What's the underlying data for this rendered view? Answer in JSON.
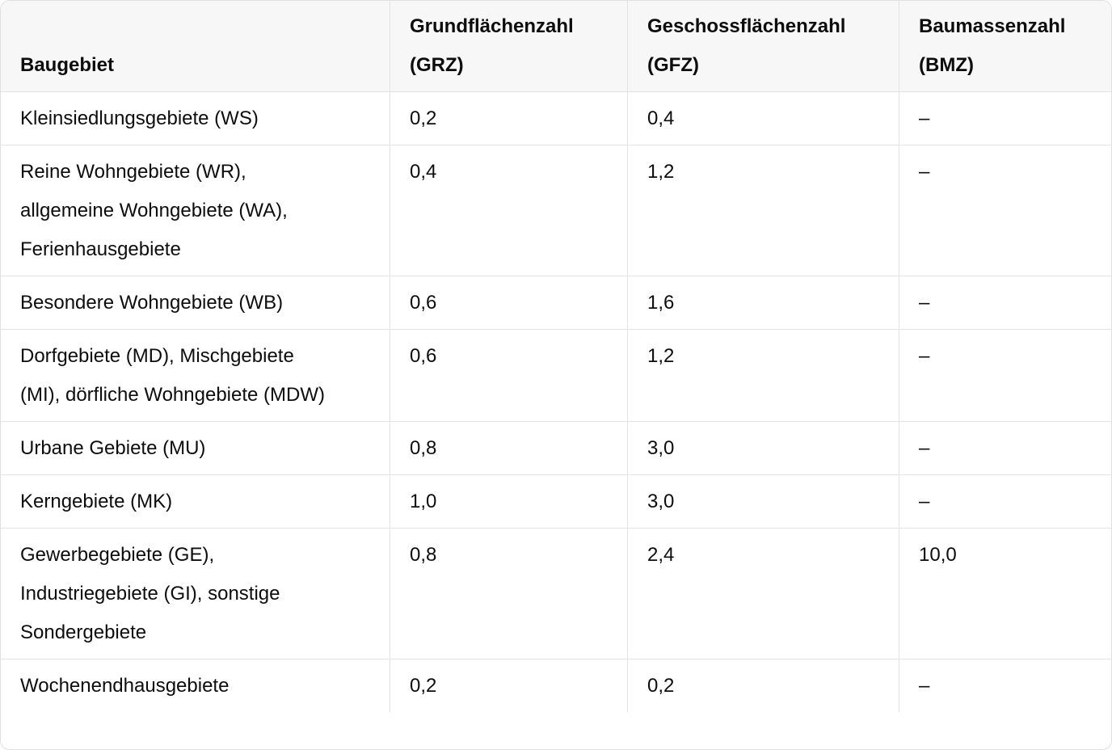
{
  "colors": {
    "page_background": "#ffffff",
    "header_background": "#f7f7f8",
    "border": "#e3e3e3",
    "text": "#0d0d0d"
  },
  "table": {
    "columns": [
      {
        "key": "baugebiet",
        "label": "Baugebiet"
      },
      {
        "key": "grz",
        "label": "Grundflächenzahl (GRZ)"
      },
      {
        "key": "gfz",
        "label": "Geschossflächenzahl (GFZ)"
      },
      {
        "key": "bmz",
        "label": "Baumassenzahl (BMZ)"
      }
    ],
    "rows": [
      {
        "baugebiet": "Kleinsiedlungsgebiete (WS)",
        "grz": "0,2",
        "gfz": "0,4",
        "bmz": "–"
      },
      {
        "baugebiet": "Reine Wohngebiete (WR), allgemeine Wohngebiete (WA), Ferienhausgebiete",
        "grz": "0,4",
        "gfz": "1,2",
        "bmz": "–"
      },
      {
        "baugebiet": "Besondere Wohngebiete (WB)",
        "grz": "0,6",
        "gfz": "1,6",
        "bmz": "–"
      },
      {
        "baugebiet": "Dorfgebiete (MD), Mischgebiete (MI), dörfliche Wohngebiete (MDW)",
        "grz": "0,6",
        "gfz": "1,2",
        "bmz": "–"
      },
      {
        "baugebiet": "Urbane Gebiete (MU)",
        "grz": "0,8",
        "gfz": "3,0",
        "bmz": "–"
      },
      {
        "baugebiet": "Kerngebiete (MK)",
        "grz": "1,0",
        "gfz": "3,0",
        "bmz": "–"
      },
      {
        "baugebiet": "Gewerbegebiete (GE), Industriegebiete (GI), sonstige Sondergebiete",
        "grz": "0,8",
        "gfz": "2,4",
        "bmz": "10,0"
      },
      {
        "baugebiet": "Wochenendhausgebiete",
        "grz": "0,2",
        "gfz": "0,2",
        "bmz": "–"
      }
    ]
  }
}
